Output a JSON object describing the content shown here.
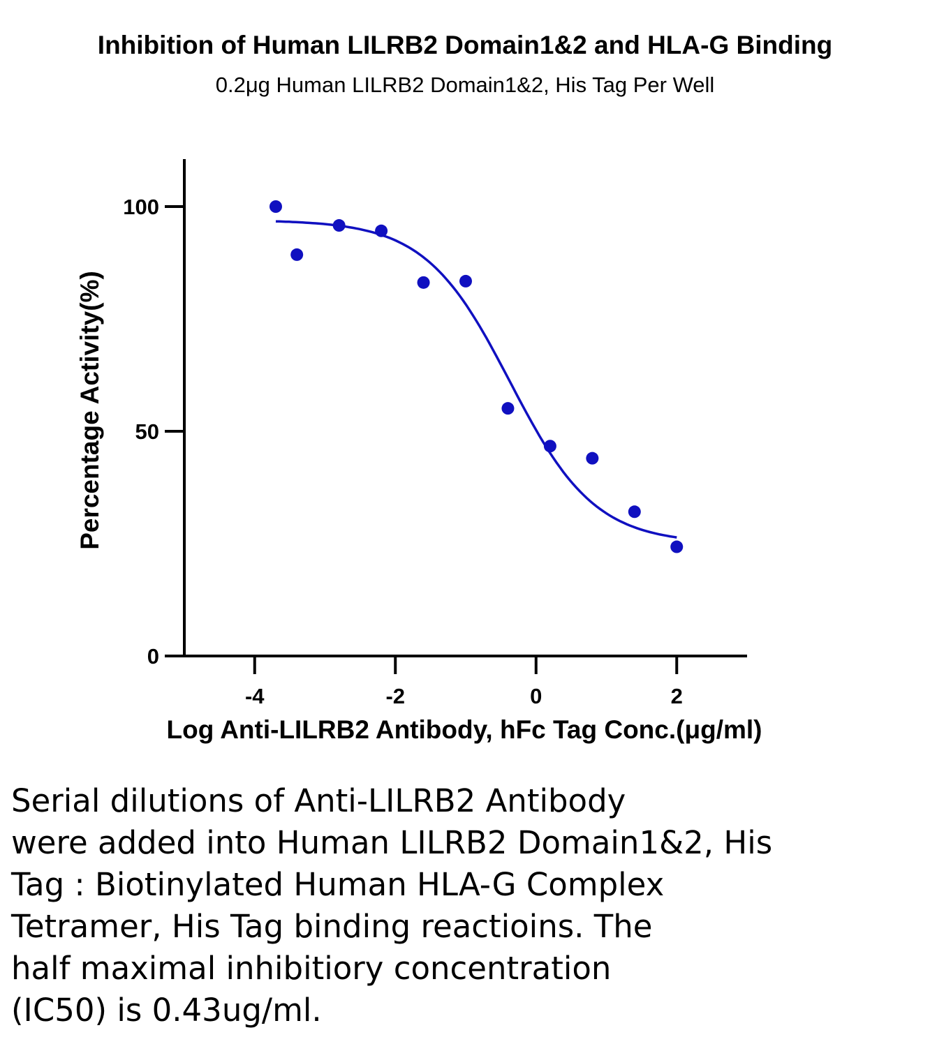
{
  "chart_data": {
    "type": "scatter",
    "title": "Inhibition of Human LILRB2 Domain1&2 and HLA-G Binding",
    "subtitle": "0.2μg Human LILRB2 Domain1&2, His Tag Per Well",
    "xlabel": "Log Anti-LILRB2 Antibody, hFc Tag Conc.(μg/ml)",
    "ylabel": "Percentage Activity(%)",
    "xlim": [
      -5,
      3
    ],
    "ylim": [
      0,
      110
    ],
    "xticks": [
      -4,
      -2,
      0,
      2
    ],
    "yticks": [
      0,
      50,
      100
    ],
    "grid": false,
    "series": [
      {
        "kind": "points",
        "x": [
          -3.7,
          -3.4,
          -2.8,
          -2.2,
          -1.6,
          -1.0,
          -0.4,
          0.2,
          0.8,
          1.4,
          2.0
        ],
        "y": [
          100,
          89.3,
          95.8,
          94.6,
          83.1,
          83.4,
          55.1,
          46.7,
          44.0,
          32.1,
          24.3
        ]
      },
      {
        "kind": "fit-curve",
        "model": "four-parameter logistic",
        "top": 97,
        "bottom": 25,
        "logIC50": -0.37,
        "hill": 0.72,
        "x_range": [
          -3.7,
          2.0
        ]
      }
    ],
    "color": "#1010c0"
  },
  "caption": "Serial dilutions of Anti-LILRB2 Antibody\nwere added into Human LILRB2 Domain1&2, His\nTag : Biotinylated Human HLA-G Complex\nTetramer, His Tag binding reactioins. The\nhalf maximal inhibitiory concentration\n(IC50) is 0.43ug/ml."
}
